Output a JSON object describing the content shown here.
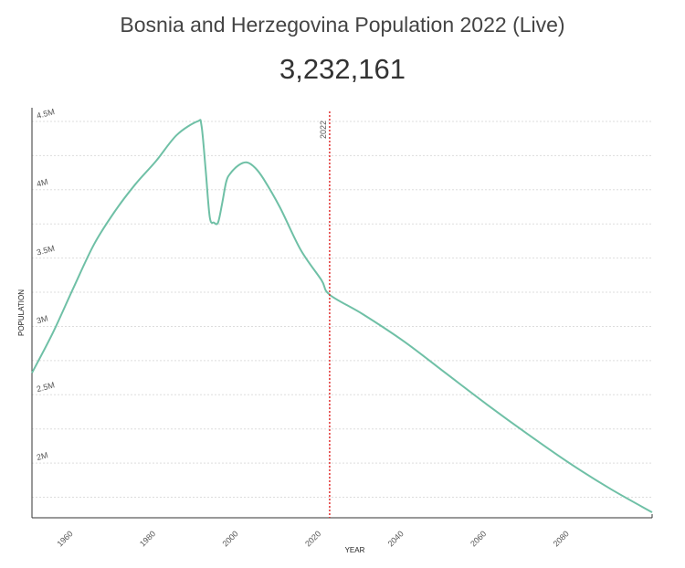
{
  "title": "Bosnia and Herzegovina Population 2022 (Live)",
  "live_count": "3,232,161",
  "colors": {
    "line": "#6fc0a6",
    "marker": "#e03030",
    "grid": "#dddddd",
    "axis": "#333333"
  },
  "chart_data": {
    "type": "line",
    "title": "Bosnia and Herzegovina Population 2022 (Live)",
    "xlabel": "YEAR",
    "ylabel": "POPULATION",
    "xlim": [
      1950,
      2100
    ],
    "ylim": [
      1600000,
      4600000
    ],
    "grid": true,
    "x_ticks": [
      "1960",
      "1980",
      "2000",
      "2020",
      "2040",
      "2060",
      "2080"
    ],
    "y_ticks": [
      "2M",
      "2.5M",
      "3M",
      "3.5M",
      "4M",
      "4.5M"
    ],
    "marker": {
      "x": 2022,
      "label": "2022"
    },
    "series": [
      {
        "x": [
          1950,
          1955,
          1960,
          1965,
          1970,
          1975,
          1980,
          1985,
          1990,
          1991,
          1992,
          1993,
          1994,
          1995,
          1996,
          1997,
          1998,
          2000,
          2002,
          2004,
          2006,
          2010,
          2015,
          2020,
          2022,
          2030,
          2040,
          2050,
          2060,
          2070,
          2080,
          2090,
          2100
        ],
        "y": [
          2660000,
          2950000,
          3280000,
          3600000,
          3840000,
          4040000,
          4210000,
          4400000,
          4500000,
          4470000,
          4150000,
          3800000,
          3760000,
          3760000,
          3900000,
          4060000,
          4120000,
          4180000,
          4200000,
          4160000,
          4080000,
          3870000,
          3560000,
          3340000,
          3232161,
          3090000,
          2890000,
          2660000,
          2430000,
          2210000,
          2000000,
          1810000,
          1640000
        ]
      }
    ]
  }
}
